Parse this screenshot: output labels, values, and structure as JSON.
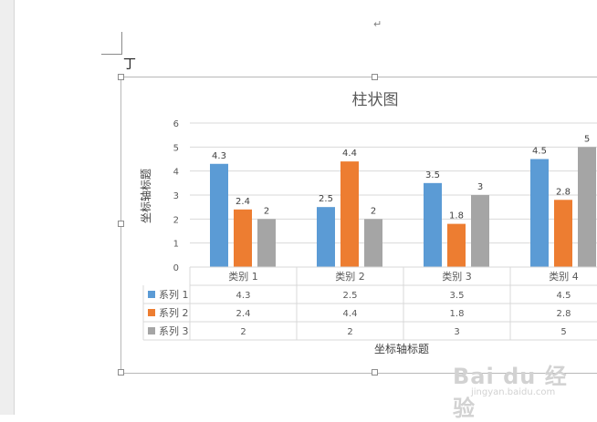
{
  "document": {
    "paragraph_mark": "↵",
    "cursor_mark": "丁"
  },
  "watermark": {
    "logo_text": "Bai du 经验",
    "url": "jingyan.baidu.com"
  },
  "colors": {
    "series1": "#5b9bd5",
    "series2": "#ed7d31",
    "series3": "#a5a5a5",
    "grid": "#d9d9d9",
    "text": "#595959",
    "background": "#ffffff"
  },
  "chart_data": {
    "type": "bar",
    "title": "柱状图",
    "xlabel": "坐标轴标题",
    "ylabel": "坐标轴标题",
    "ylim": [
      0,
      6
    ],
    "yticks": [
      "0",
      "1",
      "2",
      "3",
      "4",
      "5",
      "6"
    ],
    "categories": [
      "类别 1",
      "类别 2",
      "类别 3",
      "类别 4"
    ],
    "series": [
      {
        "name": "系列 1",
        "values": [
          4.3,
          2.5,
          3.5,
          4.5
        ],
        "labels": [
          "4.3",
          "2.5",
          "3.5",
          "4.5"
        ],
        "color": "#5b9bd5"
      },
      {
        "name": "系列 2",
        "values": [
          2.4,
          4.4,
          1.8,
          2.8
        ],
        "labels": [
          "2.4",
          "4.4",
          "1.8",
          "2.8"
        ],
        "color": "#ed7d31"
      },
      {
        "name": "系列 3",
        "values": [
          2,
          2,
          3,
          5
        ],
        "labels": [
          "2",
          "2",
          "3",
          "5"
        ],
        "color": "#a5a5a5"
      }
    ],
    "data_table": true,
    "gridlines": true,
    "legend": "data-table"
  }
}
